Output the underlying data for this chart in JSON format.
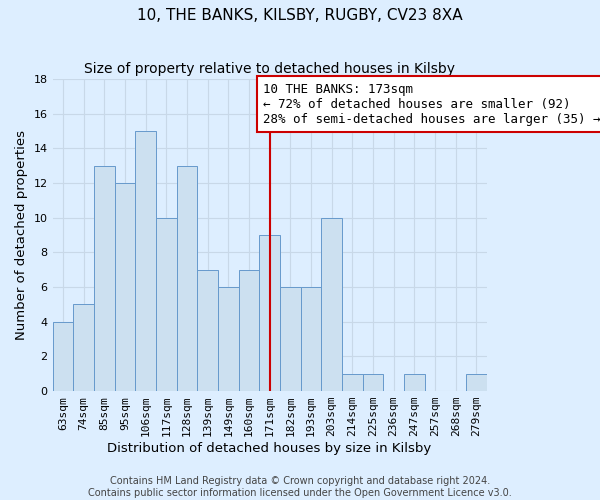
{
  "title": "10, THE BANKS, KILSBY, RUGBY, CV23 8XA",
  "subtitle": "Size of property relative to detached houses in Kilsby",
  "xlabel": "Distribution of detached houses by size in Kilsby",
  "ylabel": "Number of detached properties",
  "bar_labels": [
    "63sqm",
    "74sqm",
    "85sqm",
    "95sqm",
    "106sqm",
    "117sqm",
    "128sqm",
    "139sqm",
    "149sqm",
    "160sqm",
    "171sqm",
    "182sqm",
    "193sqm",
    "203sqm",
    "214sqm",
    "225sqm",
    "236sqm",
    "247sqm",
    "257sqm",
    "268sqm",
    "279sqm"
  ],
  "bar_values": [
    4,
    5,
    13,
    12,
    15,
    10,
    13,
    7,
    6,
    7,
    9,
    6,
    6,
    10,
    1,
    1,
    0,
    1,
    0,
    0,
    1
  ],
  "bar_color": "#cce0f0",
  "bar_edge_color": "#6699cc",
  "vline_x": 10,
  "vline_color": "#cc0000",
  "annotation_text": "10 THE BANKS: 173sqm\n← 72% of detached houses are smaller (92)\n28% of semi-detached houses are larger (35) →",
  "annotation_box_color": "#ffffff",
  "annotation_box_edge": "#cc0000",
  "ylim": [
    0,
    18
  ],
  "yticks": [
    0,
    2,
    4,
    6,
    8,
    10,
    12,
    14,
    16,
    18
  ],
  "footer_line1": "Contains HM Land Registry data © Crown copyright and database right 2024.",
  "footer_line2": "Contains public sector information licensed under the Open Government Licence v3.0.",
  "background_color": "#ddeeff",
  "grid_color": "#c8d8e8",
  "title_fontsize": 11,
  "subtitle_fontsize": 10,
  "axis_label_fontsize": 9.5,
  "tick_fontsize": 8,
  "annotation_fontsize": 9,
  "footer_fontsize": 7
}
